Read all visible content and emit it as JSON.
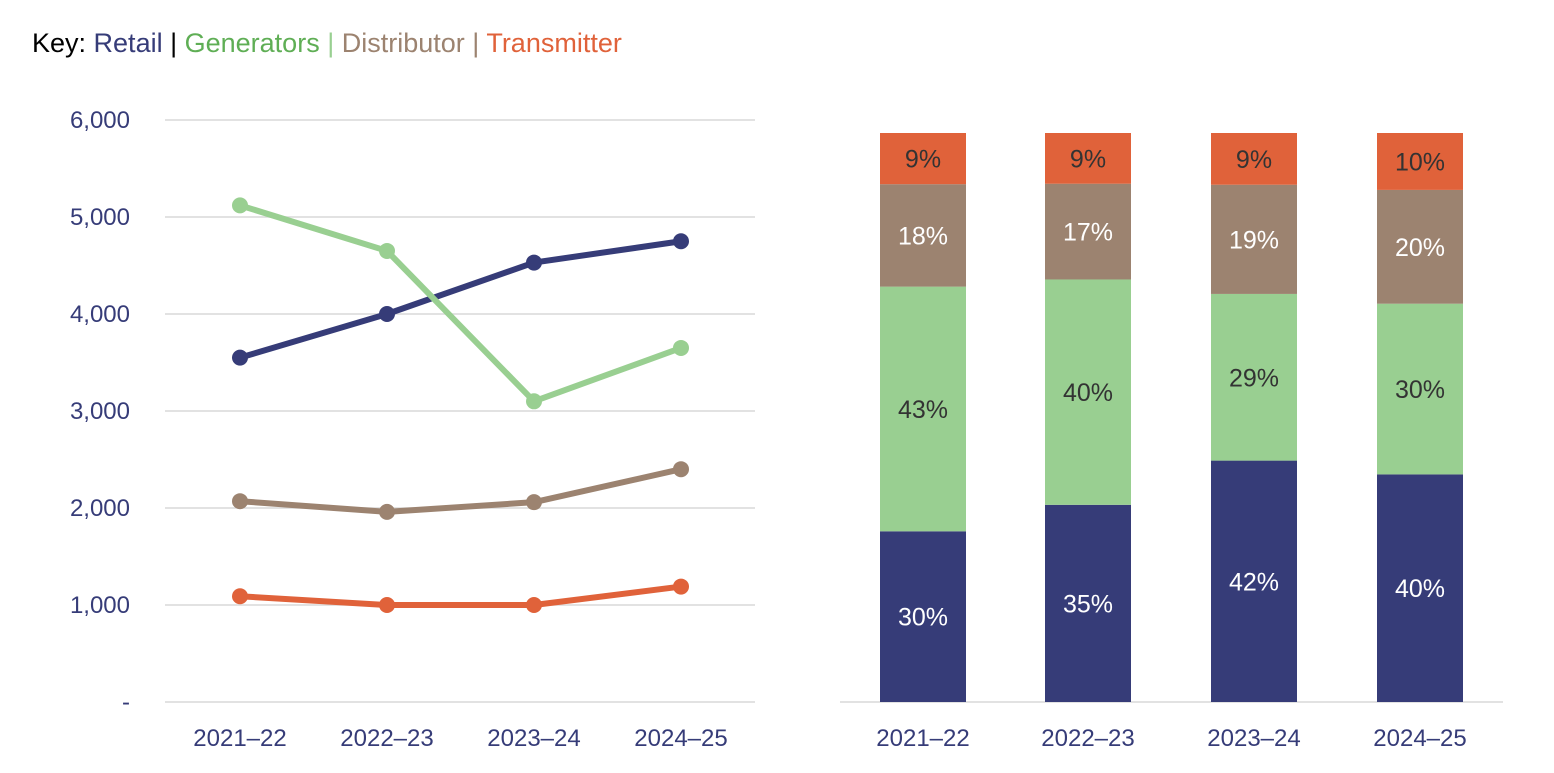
{
  "key": {
    "label": "Key:",
    "separator": "|",
    "entries": [
      {
        "name": "Retail",
        "color": "#363c78"
      },
      {
        "name": "Generators",
        "color": "#5fae55"
      },
      {
        "name": "Distributor",
        "color": "#9c8370"
      },
      {
        "name": "Transmitter",
        "color": "#e0623a"
      }
    ]
  },
  "chart_data": [
    {
      "type": "line",
      "categories": [
        "2021–22",
        "2022–23",
        "2023–24",
        "2024–25"
      ],
      "ylim": [
        0,
        6000
      ],
      "yticks": [
        0,
        1000,
        2000,
        3000,
        4000,
        5000,
        6000
      ],
      "ytick_labels": [
        "-",
        "1,000",
        "2,000",
        "3,000",
        "4,000",
        "5,000",
        "6,000"
      ],
      "grid": true,
      "series": [
        {
          "name": "Retail",
          "color": "#363c78",
          "values": [
            3550,
            4000,
            4530,
            4750
          ]
        },
        {
          "name": "Generators",
          "color": "#99cf91",
          "values": [
            5120,
            4650,
            3100,
            3650
          ]
        },
        {
          "name": "Distributor",
          "color": "#9c8370",
          "values": [
            2070,
            1960,
            2060,
            2400
          ]
        },
        {
          "name": "Transmitter",
          "color": "#e0623a",
          "values": [
            1090,
            1000,
            1000,
            1190
          ]
        }
      ]
    },
    {
      "type": "bar",
      "stacked": true,
      "percent": true,
      "categories": [
        "2021–22",
        "2022–23",
        "2023–24",
        "2024–25"
      ],
      "series": [
        {
          "name": "Retail",
          "color": "#363c78",
          "label_color": "#ffffff",
          "values": [
            30,
            35,
            42,
            40
          ]
        },
        {
          "name": "Generators",
          "color": "#99cf91",
          "label_color": "#333333",
          "values": [
            43,
            40,
            29,
            30
          ]
        },
        {
          "name": "Distributor",
          "color": "#9c8370",
          "label_color": "#ffffff",
          "values": [
            18,
            17,
            19,
            20
          ]
        },
        {
          "name": "Transmitter",
          "color": "#e0623a",
          "label_color": "#333333",
          "values": [
            9,
            9,
            9,
            10
          ]
        }
      ]
    }
  ]
}
